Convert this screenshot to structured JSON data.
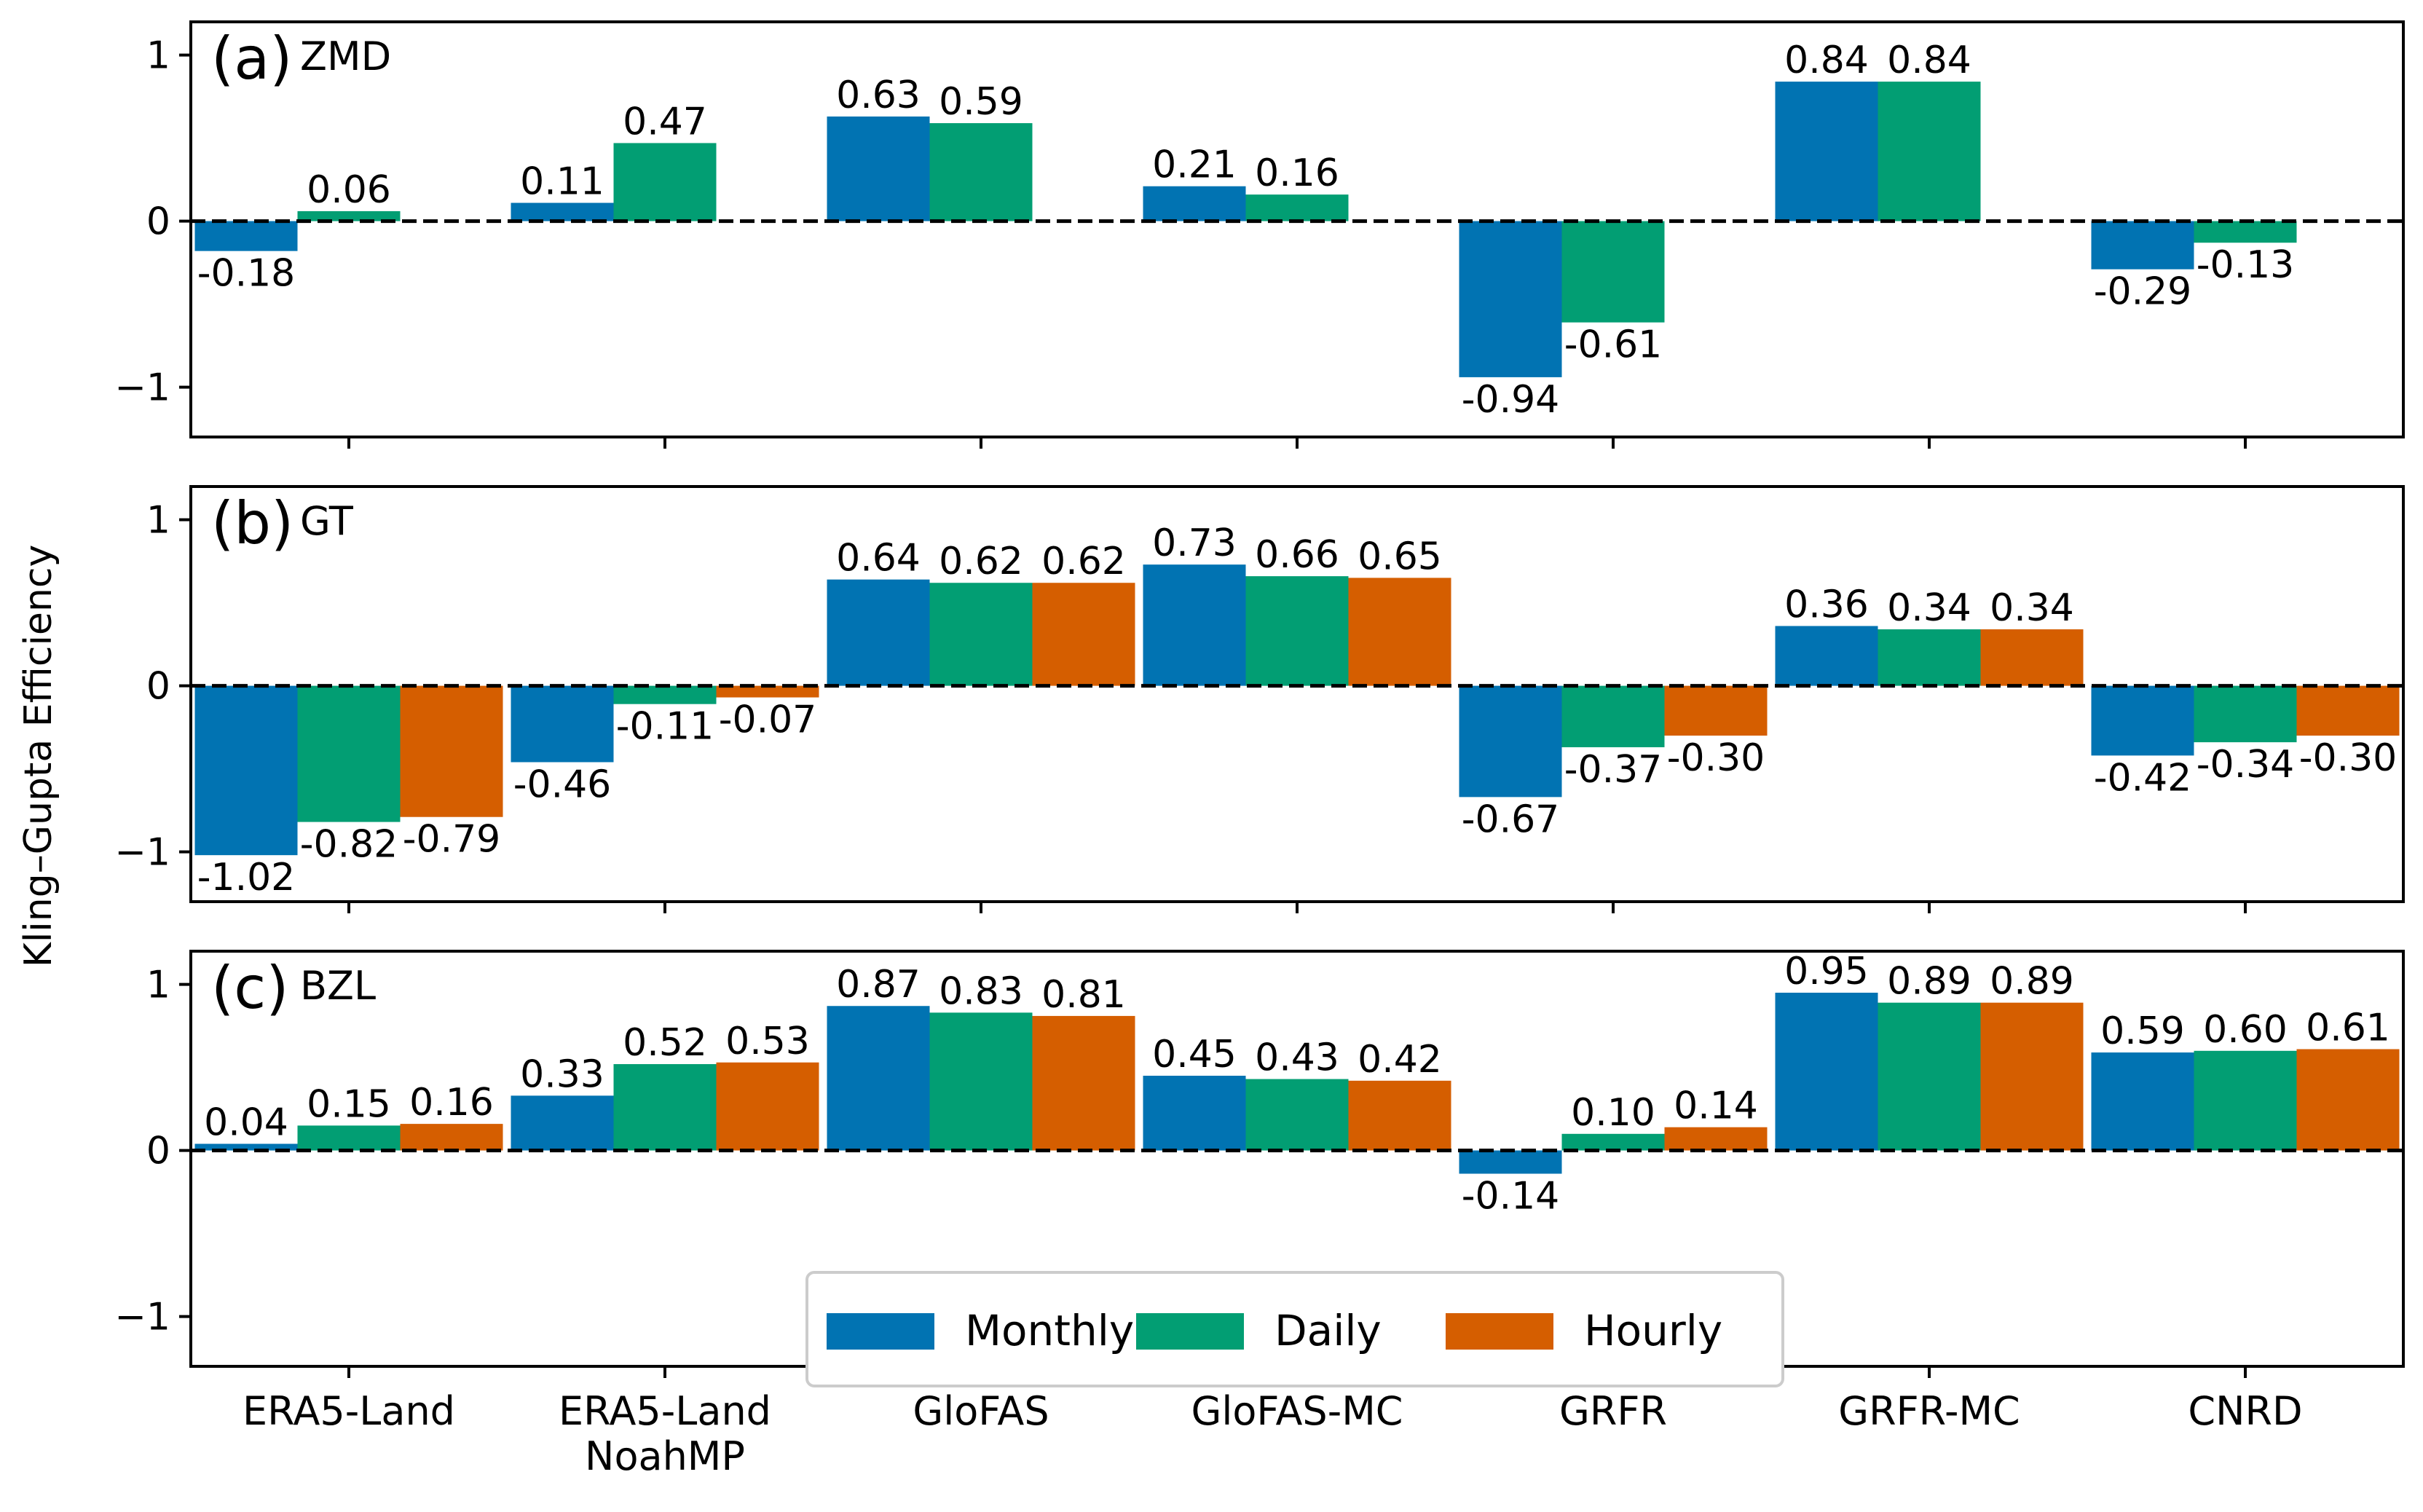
{
  "chart_data": {
    "type": "bar",
    "ylabel": "Kling–Gupta Efficiency",
    "ylim": [
      -1.3,
      1.2
    ],
    "yticks": [
      -1,
      0,
      1
    ],
    "ytick_labels": [
      "−1",
      "0",
      "1"
    ],
    "categories": [
      "ERA5-Land",
      "ERA5-Land\nNoahMP",
      "GloFAS",
      "GloFAS-MC",
      "GRFR",
      "GRFR-MC",
      "CNRD"
    ],
    "category_labels": [
      [
        "ERA5-Land"
      ],
      [
        "ERA5-Land",
        "NoahMP"
      ],
      [
        "GloFAS"
      ],
      [
        "GloFAS-MC"
      ],
      [
        "GRFR"
      ],
      [
        "GRFR-MC"
      ],
      [
        "CNRD"
      ]
    ],
    "legend": {
      "placement": "lower center",
      "entries": [
        {
          "name": "Monthly",
          "color": "#0173b2"
        },
        {
          "name": "Daily",
          "color": "#029e73"
        },
        {
          "name": "Hourly",
          "color": "#d55e00"
        }
      ]
    },
    "reference_line": {
      "y": 0,
      "style": "dashed"
    },
    "panels": [
      {
        "letter": "(a)",
        "name": "ZMD",
        "series": [
          {
            "name": "Monthly",
            "values": [
              -0.18,
              0.11,
              0.63,
              0.21,
              -0.94,
              0.84,
              -0.29
            ],
            "labels": [
              "-0.18",
              "0.11",
              "0.63",
              "0.21",
              "-0.94",
              "0.84",
              "-0.29"
            ]
          },
          {
            "name": "Daily",
            "values": [
              0.06,
              0.47,
              0.59,
              0.16,
              -0.61,
              0.84,
              -0.13
            ],
            "labels": [
              "0.06",
              "0.47",
              "0.59",
              "0.16",
              "-0.61",
              "0.84",
              "-0.13"
            ]
          },
          {
            "name": "Hourly",
            "values": [
              null,
              null,
              null,
              null,
              null,
              null,
              null
            ],
            "labels": [
              null,
              null,
              null,
              null,
              null,
              null,
              null
            ]
          }
        ]
      },
      {
        "letter": "(b)",
        "name": "GT",
        "series": [
          {
            "name": "Monthly",
            "values": [
              -1.02,
              -0.46,
              0.64,
              0.73,
              -0.67,
              0.36,
              -0.42
            ],
            "labels": [
              "-1.02",
              "-0.46",
              "0.64",
              "0.73",
              "-0.67",
              "0.36",
              "-0.42"
            ]
          },
          {
            "name": "Daily",
            "values": [
              -0.82,
              -0.11,
              0.62,
              0.66,
              -0.37,
              0.34,
              -0.34
            ],
            "labels": [
              "-0.82",
              "-0.11",
              "0.62",
              "0.66",
              "-0.37",
              "0.34",
              "-0.34"
            ]
          },
          {
            "name": "Hourly",
            "values": [
              -0.79,
              -0.07,
              0.62,
              0.65,
              -0.3,
              0.34,
              -0.3
            ],
            "labels": [
              "-0.79",
              "-0.07",
              "0.62",
              "0.65",
              "-0.30",
              "0.34",
              "-0.30"
            ]
          }
        ]
      },
      {
        "letter": "(c)",
        "name": "BZL",
        "series": [
          {
            "name": "Monthly",
            "values": [
              0.04,
              0.33,
              0.87,
              0.45,
              -0.14,
              0.95,
              0.59
            ],
            "labels": [
              "0.04",
              "0.33",
              "0.87",
              "0.45",
              "-0.14",
              "0.95",
              "0.59"
            ]
          },
          {
            "name": "Daily",
            "values": [
              0.15,
              0.52,
              0.83,
              0.43,
              0.1,
              0.89,
              0.6
            ],
            "labels": [
              "0.15",
              "0.52",
              "0.83",
              "0.43",
              "0.10",
              "0.89",
              "0.60"
            ]
          },
          {
            "name": "Hourly",
            "values": [
              0.16,
              0.53,
              0.81,
              0.42,
              0.14,
              0.89,
              0.61
            ],
            "labels": [
              "0.16",
              "0.53",
              "0.81",
              "0.42",
              "0.14",
              "0.89",
              "0.61"
            ]
          }
        ]
      }
    ]
  }
}
